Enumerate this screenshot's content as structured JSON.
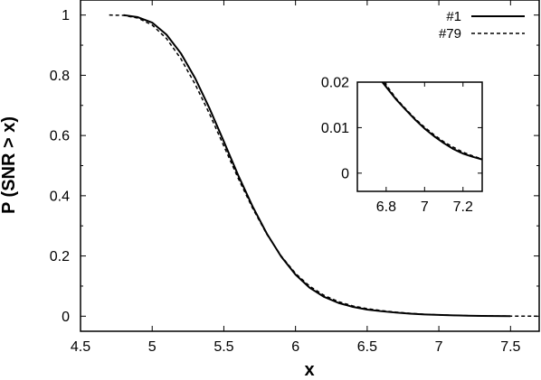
{
  "chart_data": [
    {
      "panel": "main",
      "type": "line",
      "xlabel": "x",
      "ylabel": "P (SNR > x)",
      "xlim": [
        4.5,
        7.7
      ],
      "ylim": [
        -0.05,
        1.05
      ],
      "xticks": [
        4.5,
        5,
        5.5,
        6,
        6.5,
        7,
        7.5
      ],
      "xtick_labels": [
        "4.5",
        "5",
        "5.5",
        "6",
        "6.5",
        "7",
        "7.5"
      ],
      "yticks": [
        0,
        0.2,
        0.4,
        0.6,
        0.8,
        1
      ],
      "ytick_labels": [
        "0",
        "0.2",
        "0.4",
        "0.6",
        "0.8",
        "1"
      ],
      "grid": false,
      "legend": "top-right",
      "series": [
        {
          "name": "#1",
          "dash": "solid",
          "x": [
            4.8,
            4.9,
            5.0,
            5.1,
            5.2,
            5.3,
            5.4,
            5.5,
            5.6,
            5.7,
            5.8,
            5.9,
            6.0,
            6.1,
            6.2,
            6.3,
            6.4,
            6.5,
            6.6,
            6.7,
            6.8,
            6.9,
            7.0,
            7.1,
            7.2,
            7.3,
            7.4,
            7.5
          ],
          "y": [
            1.0,
            0.993,
            0.975,
            0.935,
            0.873,
            0.79,
            0.69,
            0.58,
            0.468,
            0.365,
            0.274,
            0.198,
            0.138,
            0.094,
            0.064,
            0.044,
            0.031,
            0.022,
            0.0165,
            0.012,
            0.0085,
            0.006,
            0.0042,
            0.0028,
            0.0018,
            0.001,
            0.0005,
            0.0002
          ]
        },
        {
          "name": "#79",
          "dash": "dashed",
          "x": [
            4.7,
            4.8,
            4.9,
            5.0,
            5.1,
            5.2,
            5.3,
            5.4,
            5.5,
            5.6,
            5.7,
            5.8,
            5.9,
            6.0,
            6.1,
            6.2,
            6.3,
            6.4,
            6.5,
            6.6,
            6.7,
            6.8,
            6.9,
            7.0,
            7.1,
            7.2,
            7.3,
            7.4,
            7.5,
            7.6,
            7.7
          ],
          "y": [
            1.0,
            0.999,
            0.99,
            0.967,
            0.922,
            0.855,
            0.77,
            0.672,
            0.565,
            0.458,
            0.359,
            0.272,
            0.2,
            0.142,
            0.099,
            0.069,
            0.048,
            0.034,
            0.025,
            0.0185,
            0.0135,
            0.0095,
            0.0065,
            0.0045,
            0.0031,
            0.002,
            0.0012,
            0.0007,
            0.0003,
            0.0001,
            0.0
          ]
        }
      ]
    },
    {
      "panel": "inset",
      "type": "line",
      "xlabel": "",
      "ylabel": "",
      "xlim": [
        6.65,
        7.3
      ],
      "ylim": [
        -0.004,
        0.02
      ],
      "xticks": [
        6.8,
        7.0,
        7.2
      ],
      "xtick_labels": [
        "6.8",
        "7",
        "7.2"
      ],
      "yticks": [
        0,
        0.01,
        0.02
      ],
      "ytick_labels": [
        "0",
        "0.01",
        "0.02"
      ],
      "grid": false,
      "series": [
        {
          "name": "#1",
          "dash": "solid",
          "x": [
            6.78,
            6.85,
            6.9,
            6.95,
            7.0,
            7.05,
            7.1,
            7.15,
            7.2,
            7.25,
            7.3
          ],
          "y": [
            0.02,
            0.0163,
            0.014,
            0.0118,
            0.0098,
            0.0081,
            0.0066,
            0.0053,
            0.0043,
            0.0036,
            0.003
          ]
        },
        {
          "name": "#79",
          "dash": "dashed",
          "x": [
            6.79,
            6.85,
            6.9,
            6.95,
            7.0,
            7.05,
            7.1,
            7.15,
            7.2,
            7.25,
            7.3
          ],
          "y": [
            0.02,
            0.0165,
            0.0142,
            0.012,
            0.0101,
            0.0084,
            0.0069,
            0.0057,
            0.0046,
            0.0038,
            0.0031
          ]
        }
      ]
    }
  ]
}
